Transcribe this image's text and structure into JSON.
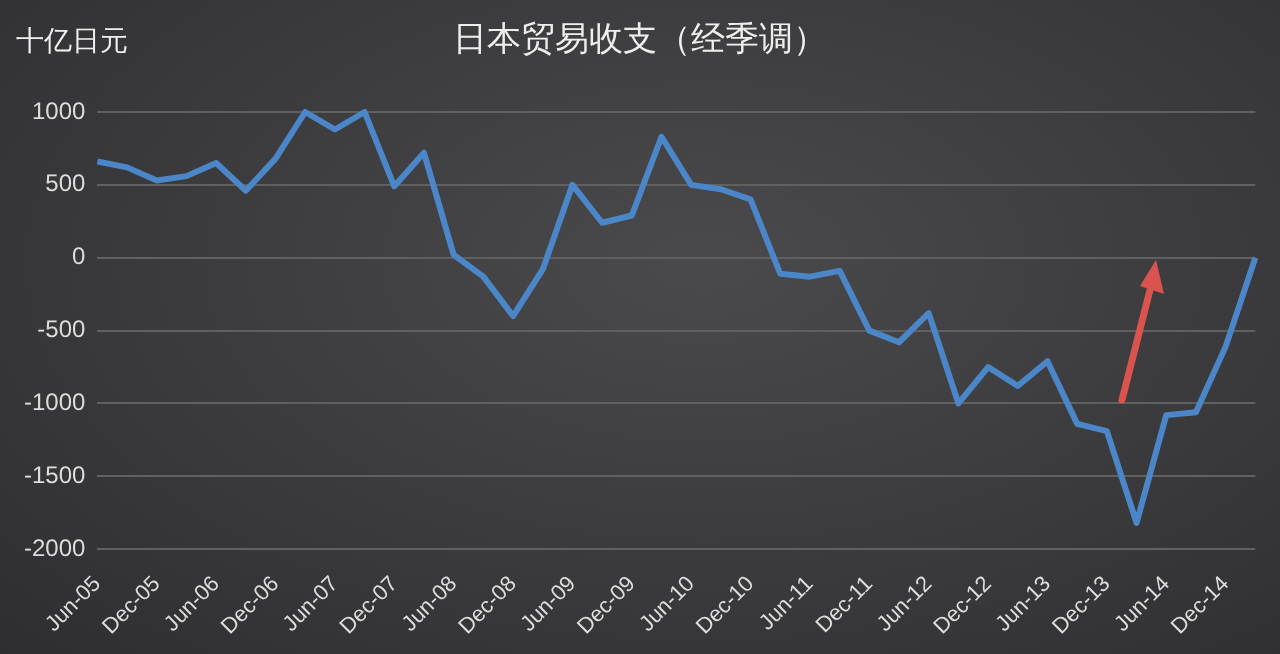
{
  "chart_data": {
    "type": "line",
    "title": "日本贸易收支（经季调）",
    "ylabel": "十亿日元",
    "categories": [
      "Jun-05",
      null,
      "Dec-05",
      null,
      "Jun-06",
      null,
      "Dec-06",
      null,
      "Jun-07",
      null,
      "Dec-07",
      null,
      "Jun-08",
      null,
      "Dec-08",
      null,
      "Jun-09",
      null,
      "Dec-09",
      null,
      "Jun-10",
      null,
      "Dec-10",
      null,
      "Jun-11",
      null,
      "Dec-11",
      null,
      "Jun-12",
      null,
      "Dec-12",
      null,
      "Jun-13",
      null,
      "Dec-13",
      null,
      "Jun-14",
      null,
      "Dec-14",
      null
    ],
    "series": [
      {
        "color": "#4a86c8",
        "values": [
          660,
          620,
          530,
          560,
          650,
          460,
          680,
          1000,
          880,
          1000,
          490,
          720,
          20,
          -130,
          -400,
          -80,
          500,
          240,
          290,
          830,
          500,
          470,
          400,
          -110,
          -130,
          -90,
          -500,
          -580,
          -380,
          -1000,
          -750,
          -880,
          -710,
          -1140,
          -1190,
          -1820,
          -1080,
          -1060,
          -610,
          0
        ]
      }
    ],
    "ylim": [
      -2000,
      1000
    ],
    "yticks": [
      -2000,
      -1500,
      -1000,
      -500,
      0,
      500,
      1000
    ],
    "grid": "y",
    "legend": false,
    "marker": "none",
    "line_style": "solid"
  }
}
